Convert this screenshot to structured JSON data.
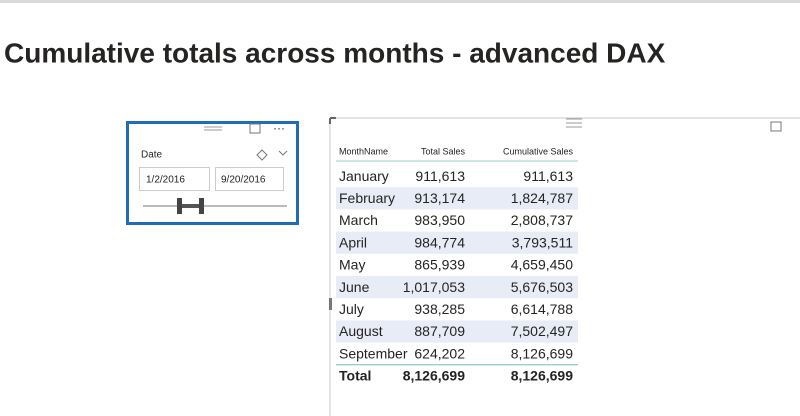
{
  "header": {
    "title": "Cumulative totals across months - advanced DAX"
  },
  "slicer": {
    "label": "Date",
    "start": "1/2/2016",
    "end": "9/20/2016"
  },
  "table": {
    "columns": [
      "MonthName",
      "Total Sales",
      "Cumulative Sales"
    ],
    "rows": [
      [
        "January",
        "911,613",
        "911,613"
      ],
      [
        "February",
        "913,174",
        "1,824,787"
      ],
      [
        "March",
        "983,950",
        "2,808,737"
      ],
      [
        "April",
        "984,774",
        "3,793,511"
      ],
      [
        "May",
        "865,939",
        "4,659,450"
      ],
      [
        "June",
        "1,017,053",
        "5,676,503"
      ],
      [
        "July",
        "938,285",
        "6,614,788"
      ],
      [
        "August",
        "887,709",
        "7,502,497"
      ],
      [
        "September",
        "624,202",
        "8,126,699"
      ]
    ],
    "total": [
      "Total",
      "8,126,699",
      "8,126,699"
    ]
  }
}
